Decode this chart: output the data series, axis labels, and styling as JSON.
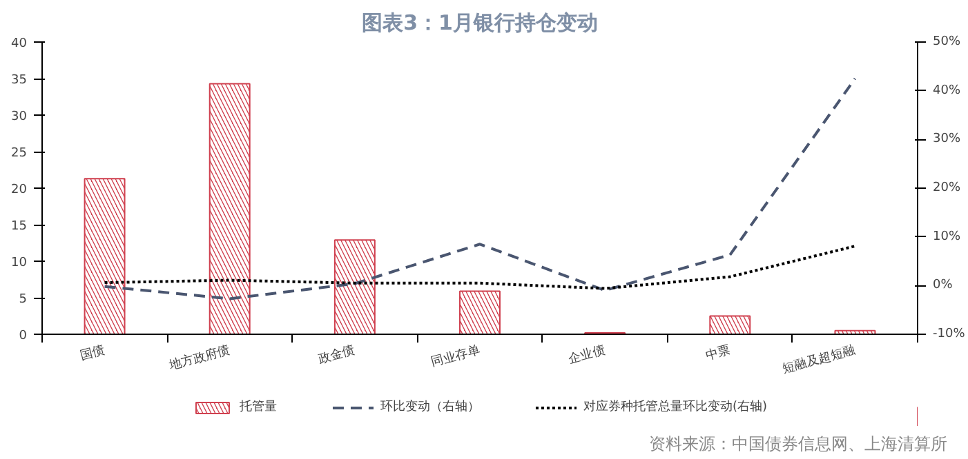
{
  "chart_data": {
    "type": "bar",
    "title": "图表3：1月银行持仓变动",
    "categories": [
      "国债",
      "地方政府债",
      "政金债",
      "同业存单",
      "企业债",
      "中票",
      "短融及超短融"
    ],
    "series": [
      {
        "name": "托管量",
        "color": "#d0404f",
        "values": [
          21.3,
          34.3,
          12.9,
          5.9,
          0.2,
          2.5,
          0.5
        ]
      },
      {
        "name": "环比变动（右轴）",
        "type": "line",
        "axis": "y2",
        "line_style": "dashed",
        "color": "#4a5670",
        "values": [
          -0.2,
          -2.7,
          0.4,
          8.5,
          -1.0,
          6.3,
          42.5
        ]
      },
      {
        "name": "对应券种托管总量环比变动(右轴)",
        "type": "line",
        "axis": "y2",
        "line_style": "dotted",
        "color": "#000000",
        "values": [
          0.6,
          1.1,
          0.5,
          0.5,
          -0.6,
          1.8,
          8.1
        ]
      }
    ],
    "ylim": [
      0,
      40
    ],
    "yticks": [
      0,
      5,
      10,
      15,
      20,
      25,
      30,
      35,
      40
    ],
    "y2lim": [
      -10,
      50
    ],
    "y2ticks": [
      {
        "value": -10,
        "label": "-10%"
      },
      {
        "value": 0,
        "label": "0%"
      },
      {
        "value": 10,
        "label": "10%"
      },
      {
        "value": 20,
        "label": "20%"
      },
      {
        "value": 30,
        "label": "30%"
      },
      {
        "value": 40,
        "label": "40%"
      },
      {
        "value": 50,
        "label": "50%"
      }
    ],
    "grid": false,
    "legend": "bottom",
    "annotations": [
      "资料来源：中国债券信息网、上海清算所"
    ]
  }
}
